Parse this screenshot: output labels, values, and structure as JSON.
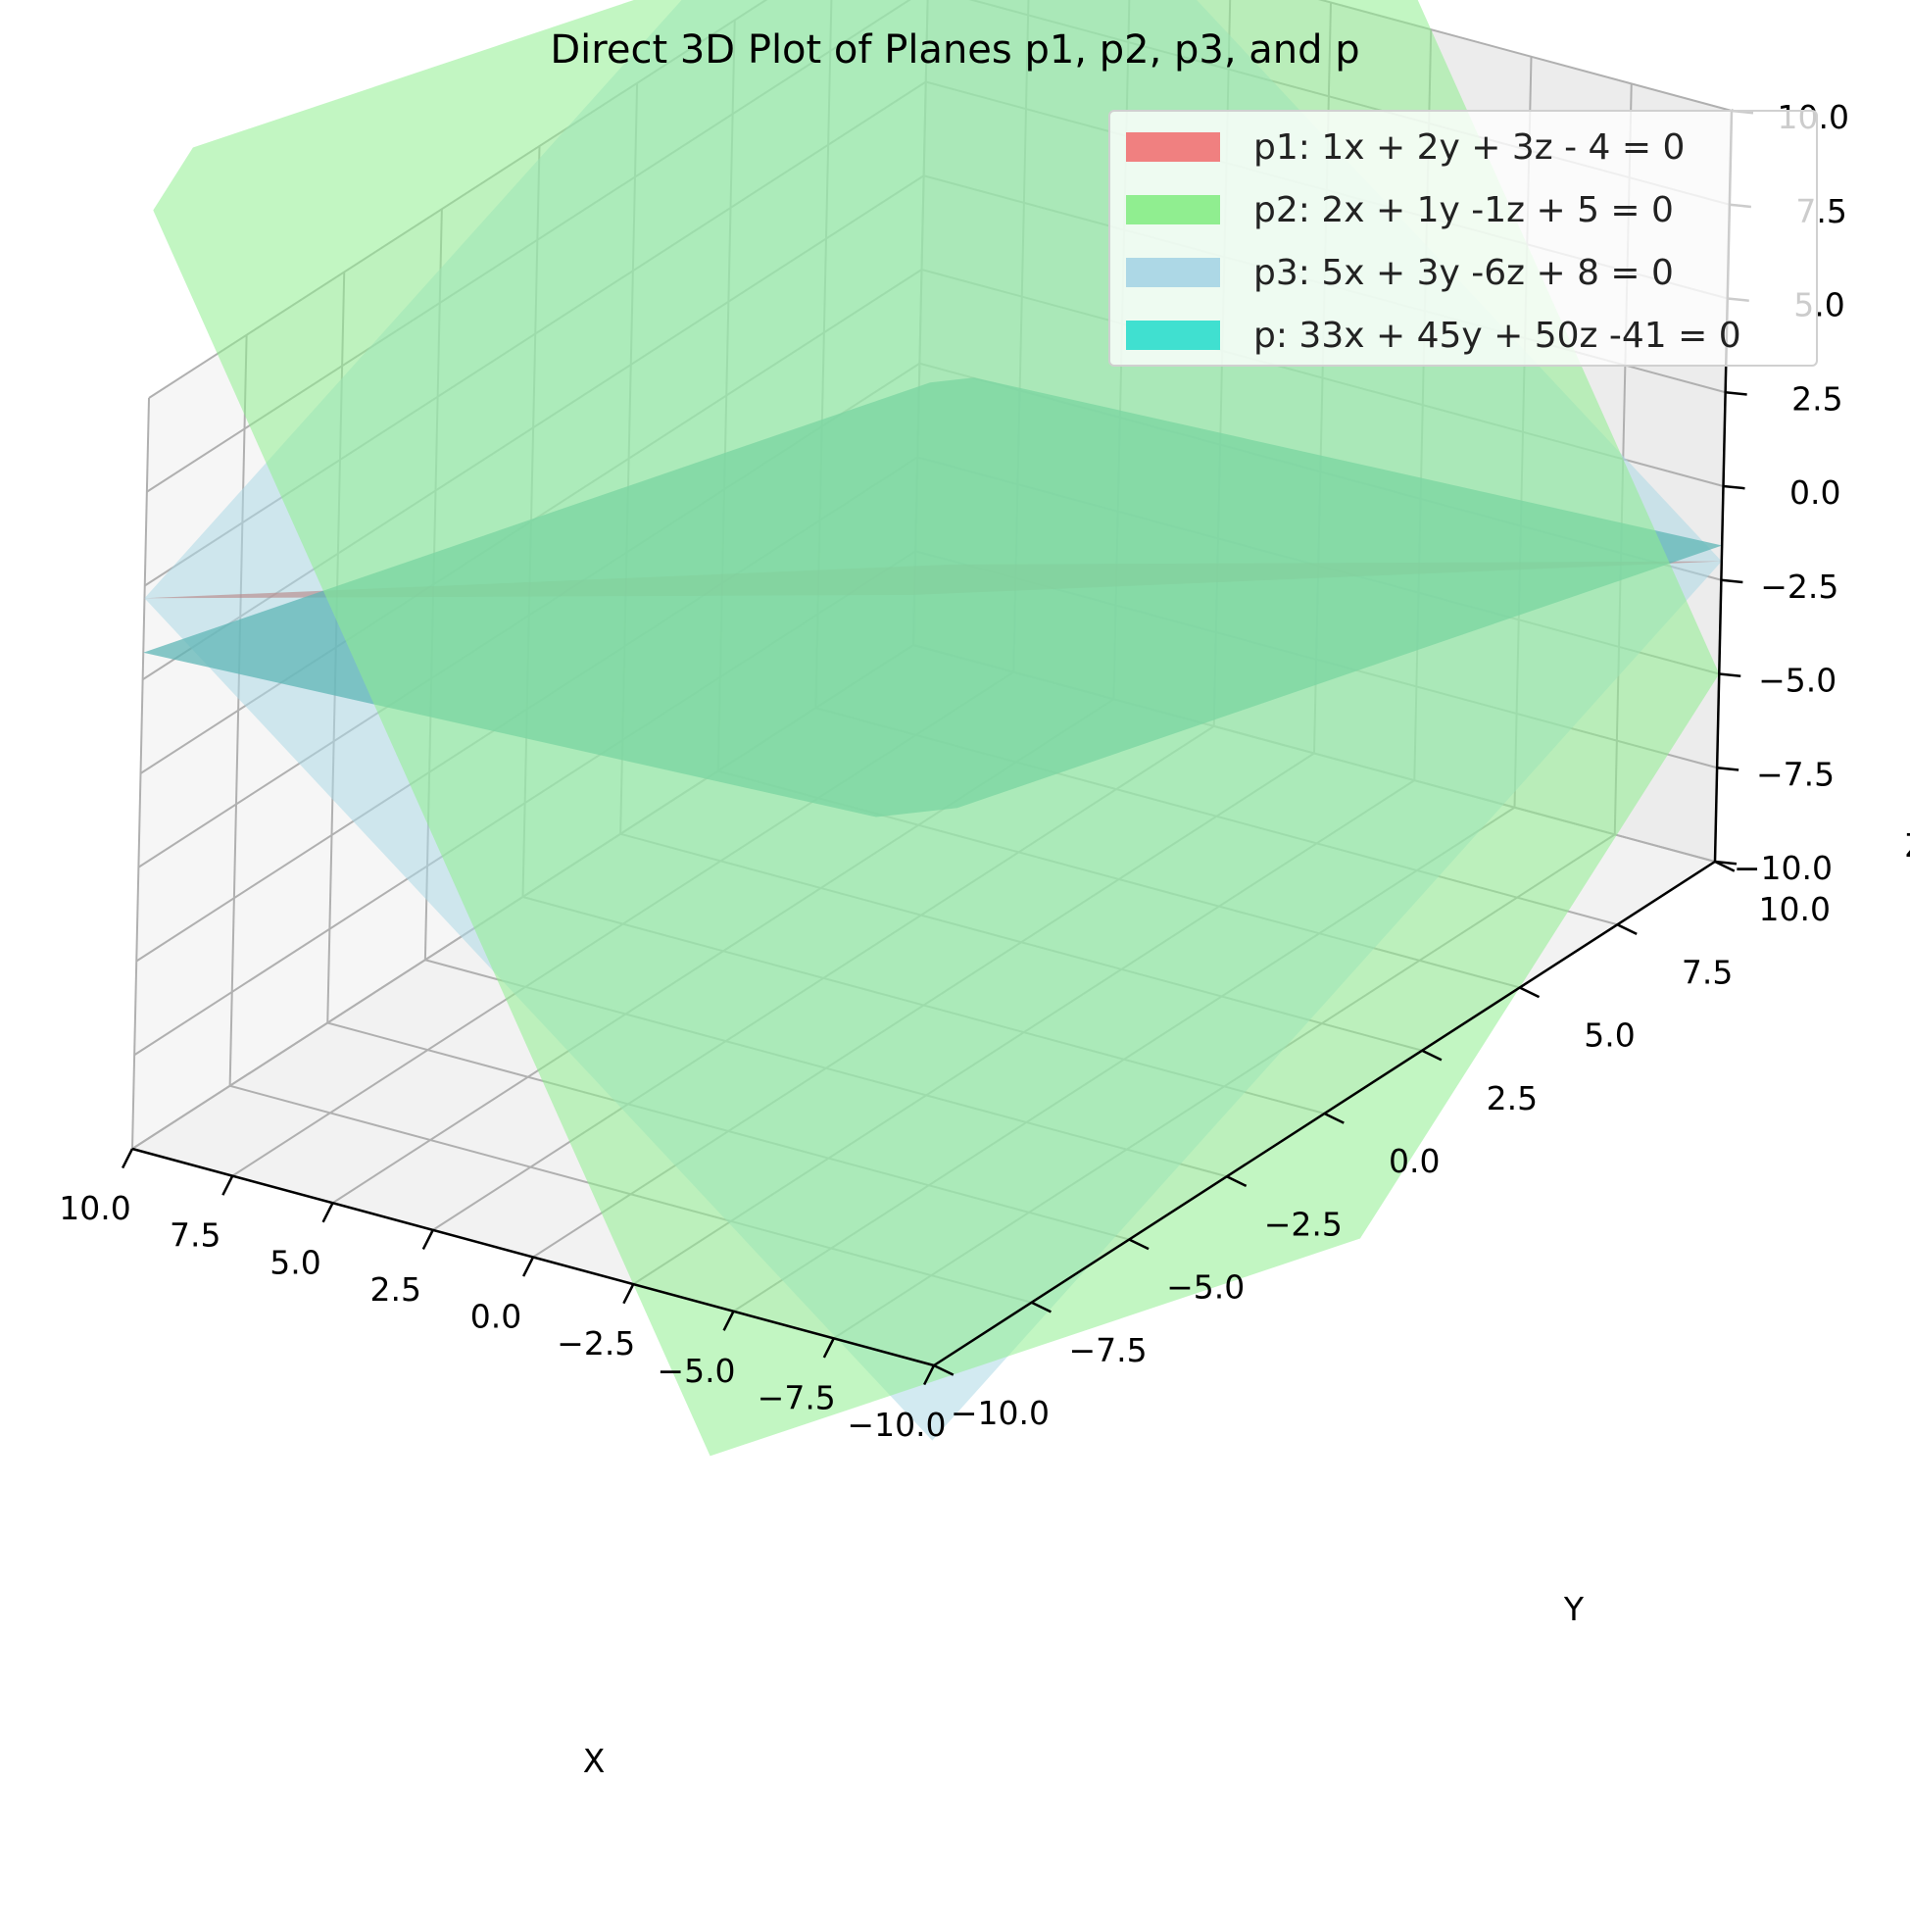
{
  "chart_data": {
    "type": "surface3d",
    "title": "Direct 3D Plot of Planes p1, p2, p3, and p",
    "xlabel": "X",
    "ylabel": "Y",
    "zlabel": "Z",
    "xlim": [
      -10,
      10
    ],
    "ylim": [
      -10,
      10
    ],
    "zlim": [
      -10,
      10
    ],
    "xticks": [
      "−10.0",
      "−7.5",
      "−5.0",
      "−2.5",
      "0.0",
      "2.5",
      "5.0",
      "7.5",
      "10.0"
    ],
    "yticks": [
      "−10.0",
      "−7.5",
      "−5.0",
      "−2.5",
      "0.0",
      "2.5",
      "5.0",
      "7.5",
      "10.0"
    ],
    "zticks": [
      "−10.0",
      "−7.5",
      "−5.0",
      "−2.5",
      "0.0",
      "2.5",
      "5.0",
      "7.5",
      "10.0"
    ],
    "grid": true,
    "legend_position": "top-right",
    "series": [
      {
        "name": "p1: 1x + 2y + 3z - 4 = 0",
        "coefficients": [
          1,
          2,
          3,
          -4
        ],
        "color": "#f08080"
      },
      {
        "name": "p2: 2x + 1y -1z + 5 = 0",
        "coefficients": [
          2,
          1,
          -1,
          5
        ],
        "color": "#90ee90"
      },
      {
        "name": "p3: 5x + 3y -6z + 8 = 0",
        "coefficients": [
          5,
          3,
          -6,
          8
        ],
        "color": "#add8e6"
      },
      {
        "name": "p: 33x + 45y + 50z -41 = 0",
        "coefficients": [
          33,
          45,
          50,
          -41
        ],
        "color": "#40e0d0"
      }
    ]
  }
}
